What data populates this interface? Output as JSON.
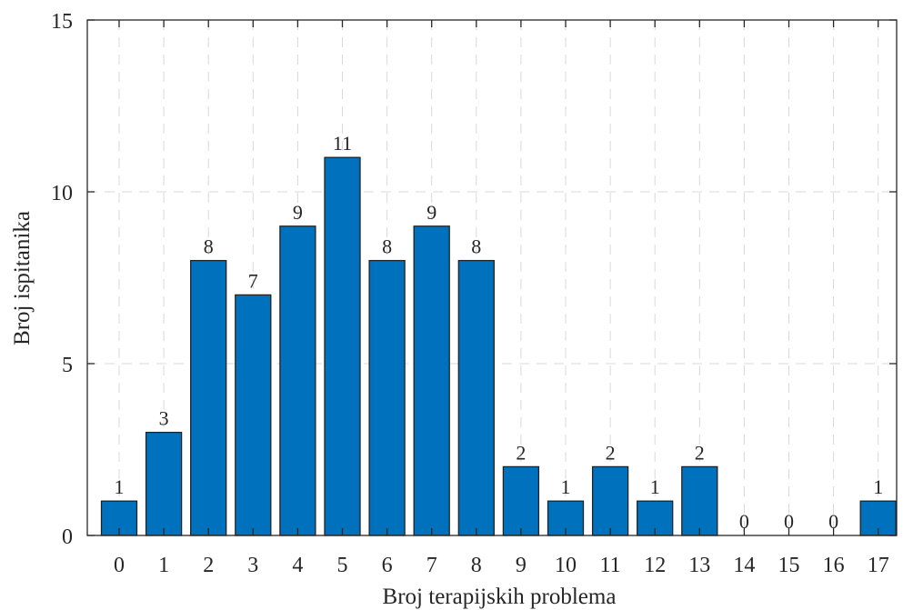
{
  "chart_data": {
    "type": "bar",
    "categories": [
      "0",
      "1",
      "2",
      "3",
      "4",
      "5",
      "6",
      "7",
      "8",
      "9",
      "10",
      "11",
      "12",
      "13",
      "14",
      "15",
      "16",
      "17"
    ],
    "values": [
      1,
      3,
      8,
      7,
      9,
      11,
      8,
      9,
      8,
      2,
      1,
      2,
      1,
      2,
      0,
      0,
      0,
      1
    ],
    "data_labels": [
      "1",
      "3",
      "8",
      "7",
      "9",
      "11",
      "8",
      "9",
      "8",
      "2",
      "1",
      "2",
      "1",
      "2",
      "0",
      "0",
      "0",
      "1"
    ],
    "xlabel": "Broj terapijskih problema",
    "ylabel": "Broj ispitanika",
    "ylim": [
      0,
      15
    ],
    "yticks": [
      0,
      5,
      10,
      15
    ],
    "ytick_labels": [
      "0",
      "5",
      "10",
      "15"
    ],
    "grid": true,
    "bar_color": "#0072BD"
  }
}
